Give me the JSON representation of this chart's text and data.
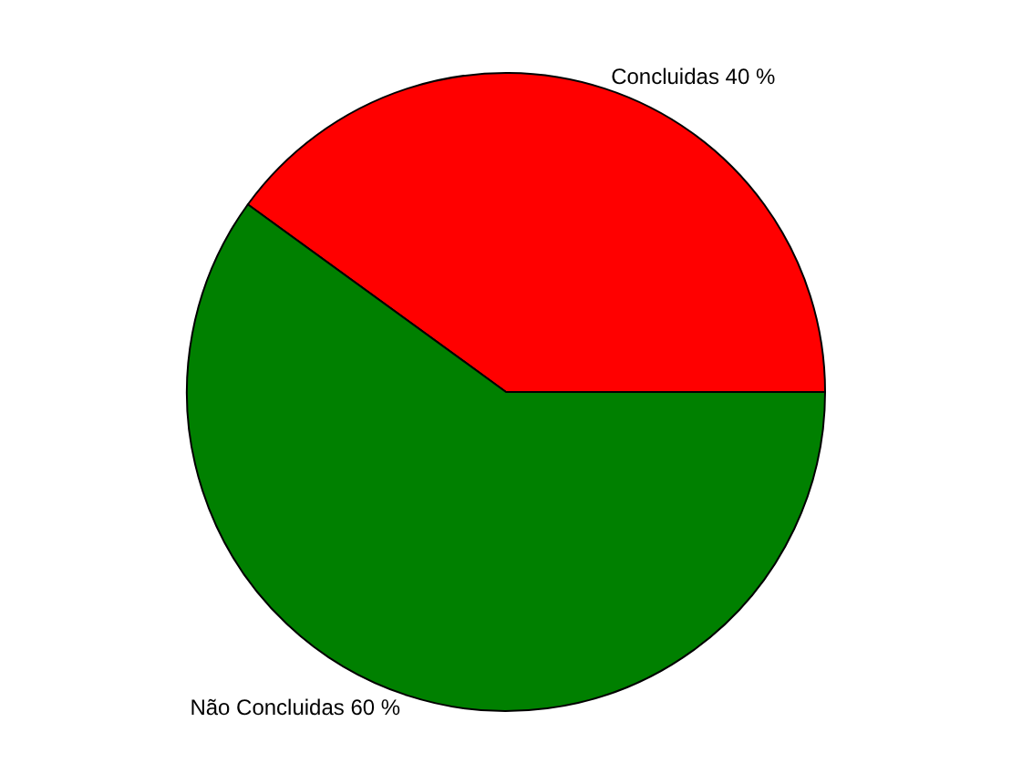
{
  "chart_data": {
    "type": "pie",
    "categories": [
      "Concluidas",
      "Não Concluidas"
    ],
    "values": [
      40,
      60
    ],
    "colors": [
      "#ff0000",
      "#008000"
    ],
    "value_labels": [
      "40 %",
      "60 %"
    ],
    "legend": false
  }
}
